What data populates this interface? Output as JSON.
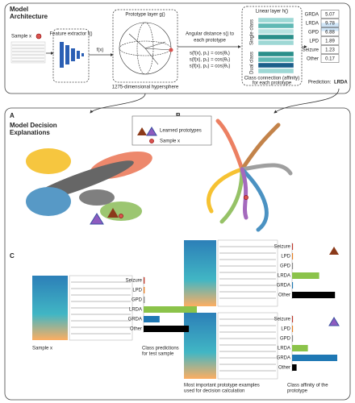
{
  "architecture": {
    "title": [
      "Model",
      "Architecture"
    ],
    "sample": "Sample x",
    "feature_extractor": "Feature extractor f()",
    "fx": "f(x)",
    "prototype_layer": "Prototype layer g()",
    "hypersphere": "1275-dimensional hypersphere",
    "angular": [
      "Angular distance s() to",
      "each prototype"
    ],
    "equations": [
      "s(f(x), p₁) = cos(θ₁)",
      "s(f(x), p₂) = cos(θ₂)",
      "s(f(x), p₃) = cos(θ₃)"
    ],
    "linear_layer": "Linear layer h()",
    "single_class": "Single class",
    "dual_class": "Dual class",
    "affinity": [
      "Class connection (affinity)",
      "for each prototype"
    ],
    "table": [
      [
        "GRDA",
        5.07
      ],
      [
        "LRDA",
        9.78
      ],
      [
        "GPD",
        6.88
      ],
      [
        "LPD",
        1.89
      ],
      [
        "Seizure",
        1.23
      ],
      [
        "Other",
        0.17
      ]
    ],
    "prediction_label": "Prediction:",
    "prediction": "LRDA"
  },
  "explanations": {
    "a": "A",
    "title": [
      "Model Decision",
      "Explanations"
    ],
    "b": "B",
    "legend": [
      "Learned prototypes",
      "Sample x"
    ]
  },
  "panel_c": {
    "label": "C",
    "sample": "Sample x",
    "predictions_caption": [
      "Class predictions",
      "for test sample"
    ],
    "examples_caption": [
      "Most important prototype examples",
      "used for decision calculation"
    ],
    "affinity_caption": [
      "Class affinity of the",
      "prototype"
    ],
    "classes": [
      "Seizure",
      "LPD",
      "GPD",
      "LRDA",
      "GRDA",
      "Other"
    ],
    "colors": [
      "#c0392b",
      "#e67e22",
      "#888888",
      "#8bc34a",
      "#1f78b4",
      "#000000"
    ],
    "charts": [
      {
        "values": [
          0.02,
          0.02,
          0.02,
          1.0,
          0.3,
          0.85
        ]
      },
      {
        "values": [
          0.02,
          0.02,
          0.02,
          0.6,
          0.02,
          0.95
        ]
      },
      {
        "values": [
          0.02,
          0.02,
          0.02,
          0.35,
          1.0,
          0.1
        ]
      }
    ]
  }
}
